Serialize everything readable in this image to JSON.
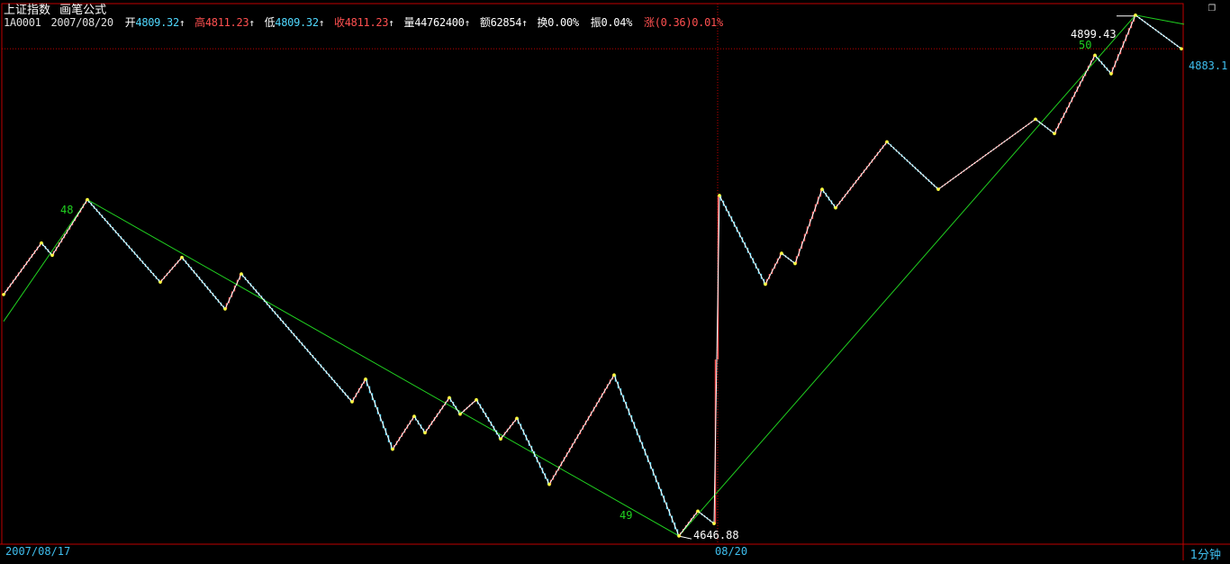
{
  "header": {
    "index_name": "上证指数",
    "formula_name": "画笔公式"
  },
  "quote": {
    "code": "1A0001",
    "date": "2007/08/20",
    "open_label": "开",
    "open": "4809.32",
    "high_label": "高",
    "high": "4811.23",
    "low_label": "低",
    "low": "4809.32",
    "close_label": "收",
    "close": "4811.23",
    "vol_label": "量",
    "volume": "44762400",
    "amt_label": "额",
    "amount": "62854",
    "turn_label": "换",
    "turnover": "0.00%",
    "amp_label": "振",
    "amplitude": "0.04%",
    "chg_label": "涨",
    "change": "(0.36)0.01%"
  },
  "axis": {
    "date_left": "2007/08/17",
    "date_mid": "08/20",
    "period": "1分钟",
    "current_price_label": "4883.1"
  },
  "annotations": {
    "high_value": "4899.43",
    "low_value": "4646.88",
    "count_48": "48",
    "count_49": "49",
    "count_50": "50"
  },
  "colors": {
    "up": "#ff5050",
    "down": "#50d8ff",
    "white": "#ffffff",
    "yellow": "#ffff40",
    "green": "#20d020",
    "frame": "#c00000",
    "cyan": "#3fbfef"
  },
  "icons": {
    "corner": "window-restore-icon"
  },
  "chart_data": {
    "type": "line",
    "title": "上证指数 画笔公式",
    "x_start_label": "2007/08/17",
    "x_mid_label": "08/20",
    "period": "1分钟",
    "ylim": [
      4643,
      4905
    ],
    "price_path": [
      {
        "i": 0,
        "v": 4764
      },
      {
        "i": 14,
        "v": 4789
      },
      {
        "i": 18,
        "v": 4783
      },
      {
        "i": 31,
        "v": 4810
      },
      {
        "i": 58,
        "v": 4770
      },
      {
        "i": 66,
        "v": 4782
      },
      {
        "i": 82,
        "v": 4757
      },
      {
        "i": 88,
        "v": 4774
      },
      {
        "i": 129,
        "v": 4712
      },
      {
        "i": 134,
        "v": 4723
      },
      {
        "i": 144,
        "v": 4689
      },
      {
        "i": 152,
        "v": 4705
      },
      {
        "i": 156,
        "v": 4697
      },
      {
        "i": 165,
        "v": 4714
      },
      {
        "i": 169,
        "v": 4706
      },
      {
        "i": 175,
        "v": 4713
      },
      {
        "i": 184,
        "v": 4694
      },
      {
        "i": 190,
        "v": 4704
      },
      {
        "i": 202,
        "v": 4672
      },
      {
        "i": 226,
        "v": 4725
      },
      {
        "i": 250,
        "v": 4647
      },
      {
        "i": 257,
        "v": 4659
      },
      {
        "i": 263,
        "v": 4653
      },
      {
        "i": 265,
        "v": 4812
      },
      {
        "i": 282,
        "v": 4769
      },
      {
        "i": 288,
        "v": 4784
      },
      {
        "i": 293,
        "v": 4779
      },
      {
        "i": 303,
        "v": 4815
      },
      {
        "i": 308,
        "v": 4806
      },
      {
        "i": 327,
        "v": 4838
      },
      {
        "i": 346,
        "v": 4815
      },
      {
        "i": 382,
        "v": 4849
      },
      {
        "i": 389,
        "v": 4842
      },
      {
        "i": 404,
        "v": 4880
      },
      {
        "i": 410,
        "v": 4871
      },
      {
        "i": 419,
        "v": 4899.43
      },
      {
        "i": 436,
        "v": 4883.1
      }
    ],
    "trend_path": [
      {
        "i": 0,
        "v": 4751
      },
      {
        "i": 31,
        "v": 4810
      },
      {
        "i": 250,
        "v": 4647
      },
      {
        "i": 419,
        "v": 4899.43
      },
      {
        "i": 437,
        "v": 4895
      }
    ],
    "stroke_count_labels": [
      {
        "label": "48",
        "i": 27,
        "v": 4808
      },
      {
        "label": "49",
        "i": 232,
        "v": 4661
      },
      {
        "label": "50",
        "i": 402,
        "v": 4894
      }
    ],
    "extreme_labels": [
      {
        "label": "4899.43",
        "i": 419,
        "v": 4899.43
      },
      {
        "label": "4646.88",
        "i": 250,
        "v": 4646.88
      }
    ],
    "current_price": 4883.1,
    "session_break_index": 264
  }
}
